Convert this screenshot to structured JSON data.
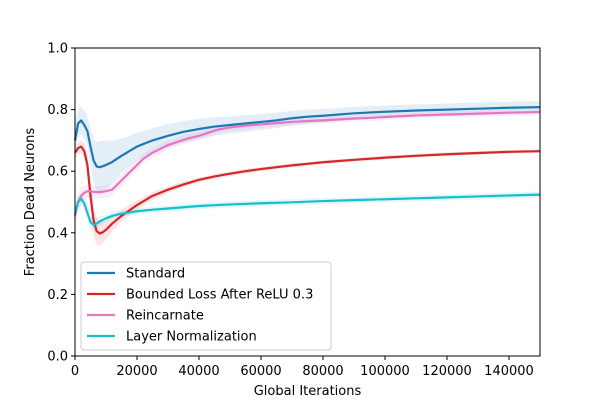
{
  "chart_data": {
    "type": "line",
    "title": "",
    "xlabel": "Global Iterations",
    "ylabel": "Fraction Dead Neurons",
    "xlim": [
      0,
      150000
    ],
    "ylim": [
      0.0,
      1.0
    ],
    "xticks": [
      0,
      20000,
      40000,
      60000,
      80000,
      100000,
      120000,
      140000
    ],
    "xtick_labels": [
      "0",
      "20000",
      "40000",
      "60000",
      "80000",
      "100000",
      "120000",
      "140000"
    ],
    "yticks": [
      0.0,
      0.2,
      0.4,
      0.6,
      0.8,
      1.0
    ],
    "ytick_labels": [
      "0.0",
      "0.2",
      "0.4",
      "0.6",
      "0.8",
      "1.0"
    ],
    "grid": false,
    "legend_position": "lower-left",
    "series": [
      {
        "name": "Standard",
        "color": "#1f77b4",
        "x": [
          0,
          1000,
          2000,
          3000,
          4000,
          5000,
          6000,
          7000,
          8000,
          10000,
          12000,
          15000,
          20000,
          25000,
          30000,
          35000,
          40000,
          45000,
          50000,
          55000,
          60000,
          65000,
          70000,
          75000,
          80000,
          90000,
          100000,
          110000,
          120000,
          130000,
          140000,
          150000
        ],
        "y": [
          0.7,
          0.755,
          0.765,
          0.75,
          0.73,
          0.68,
          0.635,
          0.615,
          0.613,
          0.62,
          0.63,
          0.65,
          0.68,
          0.7,
          0.715,
          0.728,
          0.737,
          0.745,
          0.75,
          0.755,
          0.76,
          0.765,
          0.772,
          0.777,
          0.78,
          0.788,
          0.793,
          0.797,
          0.8,
          0.803,
          0.806,
          0.808
        ],
        "band": [
          0.045,
          0.045,
          0.045,
          0.045,
          0.045,
          0.06,
          0.07,
          0.08,
          0.085,
          0.08,
          0.07,
          0.055,
          0.045,
          0.04,
          0.038,
          0.035,
          0.033,
          0.03,
          0.028,
          0.027,
          0.026,
          0.025,
          0.024,
          0.023,
          0.022,
          0.021,
          0.02,
          0.02,
          0.02,
          0.02,
          0.02,
          0.02
        ]
      },
      {
        "name": "Bounded Loss After ReLU 0.3",
        "color": "#d62728",
        "x": [
          0,
          1000,
          2000,
          3000,
          4000,
          5000,
          6000,
          7000,
          8000,
          9000,
          10000,
          12000,
          15000,
          20000,
          25000,
          30000,
          35000,
          40000,
          45000,
          50000,
          55000,
          60000,
          65000,
          70000,
          75000,
          80000,
          90000,
          100000,
          110000,
          120000,
          130000,
          140000,
          150000
        ],
        "y": [
          0.66,
          0.675,
          0.68,
          0.665,
          0.62,
          0.52,
          0.44,
          0.405,
          0.398,
          0.402,
          0.41,
          0.43,
          0.455,
          0.49,
          0.52,
          0.54,
          0.557,
          0.572,
          0.583,
          0.592,
          0.6,
          0.607,
          0.613,
          0.619,
          0.624,
          0.629,
          0.637,
          0.644,
          0.65,
          0.655,
          0.659,
          0.663,
          0.665
        ],
        "band": [
          0.02,
          0.02,
          0.02,
          0.025,
          0.035,
          0.045,
          0.05,
          0.045,
          0.04,
          0.035,
          0.03,
          0.025,
          0.02,
          0.015,
          0.012,
          0.01,
          0.01,
          0.008,
          0.008,
          0.008,
          0.007,
          0.007,
          0.007,
          0.006,
          0.006,
          0.006,
          0.006,
          0.006,
          0.006,
          0.006,
          0.006,
          0.006,
          0.006
        ]
      },
      {
        "name": "Reincarnate",
        "color": "#e377c2",
        "x": [
          0,
          1000,
          2000,
          3000,
          4000,
          5000,
          6000,
          7000,
          8000,
          10000,
          12000,
          14000,
          16000,
          18000,
          20000,
          22000,
          25000,
          28000,
          30000,
          33000,
          36000,
          40000,
          43000,
          46000,
          50000,
          55000,
          60000,
          65000,
          70000,
          75000,
          80000,
          85000,
          90000,
          95000,
          100000,
          110000,
          120000,
          130000,
          140000,
          150000
        ],
        "y": [
          0.455,
          0.5,
          0.52,
          0.53,
          0.535,
          0.535,
          0.533,
          0.532,
          0.532,
          0.535,
          0.54,
          0.56,
          0.58,
          0.6,
          0.62,
          0.64,
          0.66,
          0.675,
          0.685,
          0.695,
          0.705,
          0.715,
          0.725,
          0.735,
          0.742,
          0.748,
          0.752,
          0.756,
          0.76,
          0.763,
          0.765,
          0.768,
          0.771,
          0.773,
          0.776,
          0.781,
          0.784,
          0.787,
          0.79,
          0.792
        ],
        "band": [
          0.03,
          0.03,
          0.03,
          0.025,
          0.02,
          0.02,
          0.02,
          0.02,
          0.02,
          0.02,
          0.02,
          0.02,
          0.02,
          0.02,
          0.018,
          0.018,
          0.016,
          0.016,
          0.015,
          0.015,
          0.014,
          0.014,
          0.013,
          0.013,
          0.012,
          0.012,
          0.011,
          0.011,
          0.011,
          0.01,
          0.01,
          0.01,
          0.01,
          0.01,
          0.01,
          0.01,
          0.01,
          0.01,
          0.01,
          0.01
        ]
      },
      {
        "name": "Layer Normalization",
        "color": "#17becf",
        "x": [
          0,
          1000,
          2000,
          3000,
          4000,
          5000,
          6000,
          7000,
          8000,
          10000,
          12000,
          15000,
          20000,
          25000,
          30000,
          35000,
          40000,
          50000,
          60000,
          70000,
          80000,
          90000,
          100000,
          110000,
          120000,
          130000,
          140000,
          150000
        ],
        "y": [
          0.46,
          0.5,
          0.51,
          0.495,
          0.465,
          0.435,
          0.425,
          0.43,
          0.437,
          0.447,
          0.455,
          0.462,
          0.47,
          0.475,
          0.479,
          0.483,
          0.487,
          0.492,
          0.496,
          0.499,
          0.503,
          0.506,
          0.509,
          0.512,
          0.515,
          0.518,
          0.521,
          0.524
        ],
        "band": [
          0.02,
          0.02,
          0.02,
          0.02,
          0.02,
          0.02,
          0.02,
          0.02,
          0.015,
          0.012,
          0.01,
          0.01,
          0.01,
          0.01,
          0.01,
          0.01,
          0.01,
          0.01,
          0.01,
          0.01,
          0.01,
          0.01,
          0.01,
          0.01,
          0.01,
          0.01,
          0.01,
          0.01
        ]
      }
    ]
  }
}
